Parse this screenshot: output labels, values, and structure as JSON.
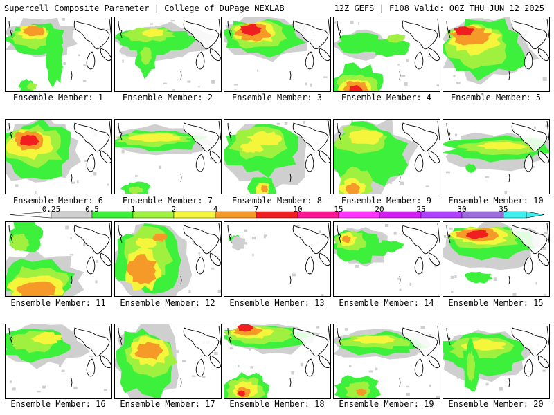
{
  "header": {
    "title_left": "Supercell Composite Parameter | College of DuPage NEXLAB",
    "title_right": "12Z GEFS | F108 Valid: 00Z THU JUN 12 2025"
  },
  "colors": {
    "light_gray": "#cfcfcf",
    "light_green": "#3cf03c",
    "yellow_green": "#a0f040",
    "yellow": "#f5f53c",
    "orange": "#f59a28",
    "red": "#f01e1e",
    "magenta_red": "#ff1493",
    "magenta": "#ff33ff",
    "purple": "#b040ff",
    "violet": "#9b6bdc",
    "cyan": "#3ef0f0"
  },
  "colorbar": {
    "labels": [
      "0.25",
      "0.5",
      "1",
      "2",
      "4",
      "7",
      "10",
      "15",
      "20",
      "25",
      "30",
      "35"
    ]
  },
  "panels": [
    {
      "label": "Ensemble Member: 1"
    },
    {
      "label": "Ensemble Member: 2"
    },
    {
      "label": "Ensemble Member: 3"
    },
    {
      "label": "Ensemble Member: 4"
    },
    {
      "label": "Ensemble Member: 5"
    },
    {
      "label": "Ensemble Member: 6"
    },
    {
      "label": "Ensemble Member: 7"
    },
    {
      "label": "Ensemble Member: 8"
    },
    {
      "label": "Ensemble Member: 9"
    },
    {
      "label": "Ensemble Member: 10"
    },
    {
      "label": "Ensemble Member: 11"
    },
    {
      "label": "Ensemble Member: 12"
    },
    {
      "label": "Ensemble Member: 13"
    },
    {
      "label": "Ensemble Member: 14"
    },
    {
      "label": "Ensemble Member: 15"
    },
    {
      "label": "Ensemble Member: 16"
    },
    {
      "label": "Ensemble Member: 17"
    },
    {
      "label": "Ensemble Member: 18"
    },
    {
      "label": "Ensemble Member: 19"
    },
    {
      "label": "Ensemble Member: 20"
    }
  ]
}
